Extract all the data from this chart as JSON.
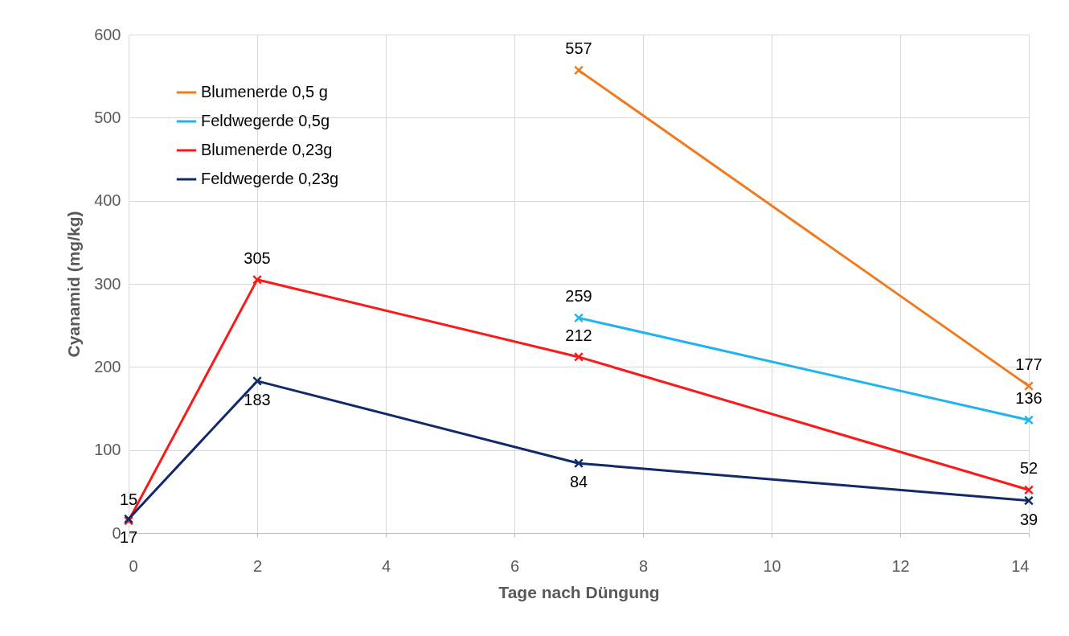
{
  "chart_data": {
    "type": "line",
    "xlabel": "Tage nach Düngung",
    "ylabel": "Cyanamid (mg/kg)",
    "series": [
      {
        "name": "Blumenerde 0,5 g",
        "color": "#f07a1e",
        "x": [
          7,
          14
        ],
        "values": [
          557,
          177
        ]
      },
      {
        "name": "Feldwegerde 0,5g",
        "color": "#1fb4ee",
        "x": [
          7,
          14
        ],
        "values": [
          259,
          136
        ]
      },
      {
        "name": "Blumenerde 0,23g",
        "color": "#fa1a1a",
        "x": [
          0,
          2,
          7,
          14
        ],
        "values": [
          15,
          305,
          212,
          52
        ]
      },
      {
        "name": "Feldwegerde 0,23g",
        "color": "#102a6a",
        "x": [
          0,
          2,
          7,
          14
        ],
        "values": [
          17,
          183,
          84,
          39
        ]
      }
    ],
    "xlim": [
      0,
      14
    ],
    "xticks": [
      0,
      2,
      4,
      6,
      8,
      10,
      12,
      14
    ],
    "ylim": [
      0,
      600
    ],
    "yticks": [
      0,
      100,
      200,
      300,
      400,
      500,
      600
    ],
    "grid": true,
    "legend": "top left",
    "marker": "cross",
    "line_style": "solid",
    "data_labels": true
  }
}
